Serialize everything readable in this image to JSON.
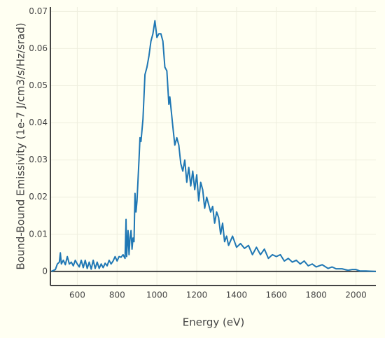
{
  "chart_data": {
    "type": "line",
    "x_label": "Energy (eV)",
    "y_label": "Bound-Bound Emissivity (1e-7 J/cm3/s/Hz/srad)",
    "x": [
      470,
      490,
      500,
      510,
      515,
      520,
      530,
      540,
      550,
      560,
      570,
      580,
      590,
      600,
      610,
      620,
      630,
      640,
      650,
      660,
      670,
      680,
      690,
      700,
      710,
      720,
      730,
      740,
      750,
      760,
      770,
      780,
      790,
      800,
      810,
      820,
      830,
      840,
      845,
      848,
      855,
      860,
      865,
      870,
      875,
      880,
      885,
      890,
      895,
      900,
      910,
      915,
      920,
      930,
      940,
      950,
      960,
      970,
      980,
      990,
      1000,
      1010,
      1020,
      1030,
      1040,
      1050,
      1060,
      1065,
      1080,
      1090,
      1100,
      1110,
      1120,
      1130,
      1140,
      1150,
      1160,
      1170,
      1180,
      1190,
      1200,
      1210,
      1220,
      1230,
      1240,
      1250,
      1260,
      1270,
      1280,
      1290,
      1300,
      1310,
      1320,
      1330,
      1340,
      1350,
      1360,
      1380,
      1400,
      1420,
      1440,
      1460,
      1480,
      1500,
      1520,
      1540,
      1560,
      1580,
      1600,
      1620,
      1640,
      1660,
      1680,
      1700,
      1720,
      1740,
      1760,
      1780,
      1800,
      1830,
      1860,
      1880,
      1900,
      1930,
      1960,
      1980,
      2000,
      2020,
      2050,
      2100
    ],
    "series": [
      {
        "name": "Bound-Bound Emissivity",
        "color": "#1f77b4",
        "values": [
          0,
          0.0005,
          0.002,
          0.0025,
          0.005,
          0.002,
          0.003,
          0.0018,
          0.004,
          0.002,
          0.0025,
          0.0015,
          0.003,
          0.002,
          0.0012,
          0.003,
          0.001,
          0.003,
          0.0008,
          0.0025,
          0.0006,
          0.003,
          0.0008,
          0.0025,
          0.0008,
          0.002,
          0.001,
          0.0022,
          0.0015,
          0.003,
          0.002,
          0.0028,
          0.004,
          0.0028,
          0.004,
          0.0038,
          0.0045,
          0.0035,
          0.014,
          0.004,
          0.011,
          0.0045,
          0.009,
          0.011,
          0.006,
          0.009,
          0.008,
          0.021,
          0.016,
          0.019,
          0.03,
          0.036,
          0.035,
          0.041,
          0.053,
          0.055,
          0.058,
          0.062,
          0.064,
          0.0675,
          0.063,
          0.064,
          0.064,
          0.062,
          0.055,
          0.054,
          0.045,
          0.047,
          0.039,
          0.034,
          0.036,
          0.034,
          0.029,
          0.027,
          0.03,
          0.024,
          0.028,
          0.023,
          0.027,
          0.022,
          0.026,
          0.019,
          0.024,
          0.022,
          0.017,
          0.02,
          0.018,
          0.016,
          0.0175,
          0.013,
          0.016,
          0.0145,
          0.01,
          0.013,
          0.008,
          0.0095,
          0.007,
          0.0095,
          0.0065,
          0.0075,
          0.0062,
          0.007,
          0.0045,
          0.0065,
          0.0045,
          0.006,
          0.0035,
          0.0045,
          0.004,
          0.0045,
          0.0028,
          0.0035,
          0.0025,
          0.003,
          0.002,
          0.0028,
          0.0015,
          0.002,
          0.0012,
          0.0018,
          0.0008,
          0.0012,
          0.0007,
          0.0007,
          0.0003,
          0.0005,
          0.0005,
          0.0001,
          0.0001,
          0
        ]
      }
    ],
    "xlim": [
      465,
      2100
    ],
    "ylim": [
      -0.0038,
      0.0712
    ],
    "xticks": [
      600,
      800,
      1000,
      1200,
      1400,
      1600,
      1800,
      2000
    ],
    "yticks": [
      0,
      0.01,
      0.02,
      0.03,
      0.04,
      0.05,
      0.06,
      0.07
    ],
    "grid": true
  }
}
